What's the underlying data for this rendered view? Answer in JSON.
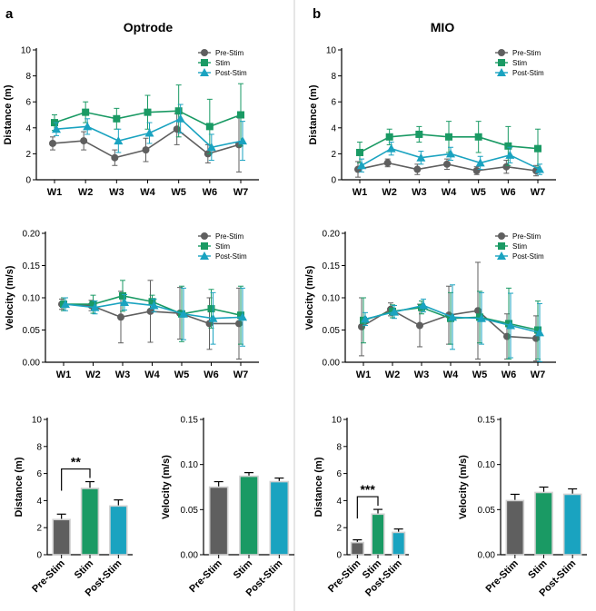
{
  "panels": [
    {
      "letter": "a",
      "title": "Optrode"
    },
    {
      "letter": "b",
      "title": "MIO"
    }
  ],
  "colors": {
    "pre": "#5f5f5f",
    "stim": "#1a9a64",
    "post": "#1aa3c0",
    "divider": "#cccccc"
  },
  "chart_data": [
    {
      "id": "opt-distance-weeks",
      "panel": "a",
      "type": "line",
      "ylabel": "Distance (m)",
      "ylim": [
        0,
        10
      ],
      "yticks": [
        0,
        2,
        4,
        6,
        8,
        10
      ],
      "yticklabels": [
        "0",
        "2",
        "4",
        "6",
        "8",
        "10"
      ],
      "categories": [
        "W1",
        "W2",
        "W3",
        "W4",
        "W5",
        "W6",
        "W7"
      ],
      "legend": "top-right",
      "series": [
        {
          "name": "Pre-Stim",
          "marker": "circle",
          "color": "#5f5f5f",
          "values": [
            2.8,
            3.0,
            1.7,
            2.3,
            3.9,
            2.0,
            2.7
          ],
          "errors": [
            0.5,
            0.7,
            0.6,
            0.9,
            1.2,
            0.7,
            2.1
          ]
        },
        {
          "name": "Stim",
          "marker": "square",
          "color": "#1a9a64",
          "values": [
            4.4,
            5.2,
            4.7,
            5.2,
            5.3,
            4.1,
            5.0
          ],
          "errors": [
            0.6,
            0.8,
            0.8,
            1.3,
            2.0,
            2.1,
            2.4
          ]
        },
        {
          "name": "Post-Stim",
          "marker": "triangle",
          "color": "#1aa3c0",
          "values": [
            3.9,
            4.1,
            3.0,
            3.6,
            4.7,
            2.5,
            3.0
          ],
          "errors": [
            0.5,
            0.6,
            0.9,
            0.8,
            1.1,
            1.0,
            1.5
          ]
        }
      ]
    },
    {
      "id": "mio-distance-weeks",
      "panel": "b",
      "type": "line",
      "ylabel": "Distance (m)",
      "ylim": [
        0,
        10
      ],
      "yticks": [
        0,
        2,
        4,
        6,
        8,
        10
      ],
      "yticklabels": [
        "0",
        "2",
        "4",
        "6",
        "8",
        "10"
      ],
      "categories": [
        "W1",
        "W2",
        "W3",
        "W4",
        "W5",
        "W6",
        "W7"
      ],
      "legend": "top-right",
      "series": [
        {
          "name": "Pre-Stim",
          "marker": "circle",
          "color": "#5f5f5f",
          "values": [
            0.8,
            1.3,
            0.8,
            1.2,
            0.7,
            1.0,
            0.7
          ],
          "errors": [
            0.6,
            0.3,
            0.4,
            0.4,
            0.3,
            0.5,
            0.4
          ]
        },
        {
          "name": "Stim",
          "marker": "square",
          "color": "#1a9a64",
          "values": [
            2.1,
            3.3,
            3.5,
            3.3,
            3.3,
            2.6,
            2.4
          ],
          "errors": [
            0.8,
            0.6,
            0.6,
            1.2,
            1.2,
            1.5,
            1.5
          ]
        },
        {
          "name": "Post-Stim",
          "marker": "triangle",
          "color": "#1aa3c0",
          "values": [
            1.1,
            2.4,
            1.7,
            2.0,
            1.3,
            1.9,
            0.8
          ],
          "errors": [
            0.5,
            0.5,
            0.5,
            0.5,
            0.5,
            0.6,
            0.4
          ]
        }
      ]
    },
    {
      "id": "opt-velocity-weeks",
      "panel": "a",
      "type": "line",
      "ylabel": "Velocity (m/s)",
      "ylim": [
        0,
        0.2
      ],
      "yticks": [
        0,
        0.05,
        0.1,
        0.15,
        0.2
      ],
      "yticklabels": [
        "0.00",
        "0.05",
        "0.10",
        "0.15",
        "0.20"
      ],
      "categories": [
        "W1",
        "W2",
        "W3",
        "W4",
        "W5",
        "W6",
        "W7"
      ],
      "legend": "top-right",
      "series": [
        {
          "name": "Pre-Stim",
          "marker": "circle",
          "color": "#5f5f5f",
          "values": [
            0.09,
            0.088,
            0.07,
            0.079,
            0.076,
            0.06,
            0.06
          ],
          "errors": [
            0.008,
            0.008,
            0.04,
            0.048,
            0.04,
            0.04,
            0.055
          ]
        },
        {
          "name": "Stim",
          "marker": "square",
          "color": "#1a9a64",
          "values": [
            0.09,
            0.09,
            0.103,
            0.094,
            0.075,
            0.083,
            0.073
          ],
          "errors": [
            0.01,
            0.014,
            0.024,
            0.01,
            0.043,
            0.03,
            0.045
          ]
        },
        {
          "name": "Post-Stim",
          "marker": "triangle",
          "color": "#1aa3c0",
          "values": [
            0.09,
            0.085,
            0.093,
            0.088,
            0.075,
            0.068,
            0.07
          ],
          "errors": [
            0.01,
            0.01,
            0.012,
            0.01,
            0.04,
            0.04,
            0.045
          ]
        }
      ]
    },
    {
      "id": "mio-velocity-weeks",
      "panel": "b",
      "type": "line",
      "ylabel": "Velocity (m/s)",
      "ylim": [
        0,
        0.2
      ],
      "yticks": [
        0,
        0.05,
        0.1,
        0.15,
        0.2
      ],
      "yticklabels": [
        "0.00",
        "0.05",
        "0.10",
        "0.15",
        "0.20"
      ],
      "categories": [
        "W1",
        "W2",
        "W3",
        "W4",
        "W5",
        "W6",
        "W7"
      ],
      "legend": "top-right",
      "series": [
        {
          "name": "Pre-Stim",
          "marker": "circle",
          "color": "#5f5f5f",
          "values": [
            0.055,
            0.082,
            0.057,
            0.073,
            0.08,
            0.04,
            0.037
          ],
          "errors": [
            0.045,
            0.01,
            0.033,
            0.045,
            0.075,
            0.035,
            0.035
          ]
        },
        {
          "name": "Stim",
          "marker": "square",
          "color": "#1a9a64",
          "values": [
            0.065,
            0.079,
            0.085,
            0.068,
            0.07,
            0.06,
            0.05
          ],
          "errors": [
            0.035,
            0.01,
            0.01,
            0.04,
            0.04,
            0.055,
            0.045
          ]
        },
        {
          "name": "Post-Stim",
          "marker": "triangle",
          "color": "#1aa3c0",
          "values": [
            0.067,
            0.078,
            0.088,
            0.07,
            0.068,
            0.057,
            0.046
          ],
          "errors": [
            0.01,
            0.01,
            0.01,
            0.05,
            0.04,
            0.05,
            0.045
          ]
        }
      ]
    },
    {
      "id": "opt-distance-bars",
      "panel": "a",
      "type": "bar",
      "ylabel": "Distance (m)",
      "ylim": [
        0,
        10
      ],
      "yticks": [
        0,
        2,
        4,
        6,
        8,
        10
      ],
      "yticklabels": [
        "0",
        "2",
        "4",
        "6",
        "8",
        "10"
      ],
      "categories": [
        "Pre-Stim",
        "Stim",
        "Post-Stim"
      ],
      "values": [
        2.6,
        4.9,
        3.6
      ],
      "errors": [
        0.4,
        0.5,
        0.45
      ],
      "significance": {
        "pair": [
          0,
          1
        ],
        "label": "**"
      }
    },
    {
      "id": "opt-velocity-bars",
      "panel": "a",
      "type": "bar",
      "ylabel": "Velocity (m/s)",
      "ylim": [
        0,
        0.15
      ],
      "yticks": [
        0,
        0.05,
        0.1,
        0.15
      ],
      "yticklabels": [
        "0.00",
        "0.05",
        "0.10",
        "0.15"
      ],
      "categories": [
        "Pre-Stim",
        "Stim",
        "Post-Stim"
      ],
      "values": [
        0.075,
        0.087,
        0.081
      ],
      "errors": [
        0.006,
        0.004,
        0.004
      ]
    },
    {
      "id": "mio-distance-bars",
      "panel": "b",
      "type": "bar",
      "ylabel": "Distance (m)",
      "ylim": [
        0,
        10
      ],
      "yticks": [
        0,
        2,
        4,
        6,
        8,
        10
      ],
      "yticklabels": [
        "0",
        "2",
        "4",
        "6",
        "8",
        "10"
      ],
      "categories": [
        "Pre-Stim",
        "Stim",
        "Post-Stim"
      ],
      "values": [
        0.9,
        3.0,
        1.65
      ],
      "errors": [
        0.2,
        0.35,
        0.25
      ],
      "significance": {
        "pair": [
          0,
          1
        ],
        "label": "***"
      }
    },
    {
      "id": "mio-velocity-bars",
      "panel": "b",
      "type": "bar",
      "ylabel": "Velocity (m/s)",
      "ylim": [
        0,
        0.15
      ],
      "yticks": [
        0,
        0.05,
        0.1,
        0.15
      ],
      "yticklabels": [
        "0.00",
        "0.05",
        "0.10",
        "0.15"
      ],
      "categories": [
        "Pre-Stim",
        "Stim",
        "Post-Stim"
      ],
      "values": [
        0.06,
        0.069,
        0.067
      ],
      "errors": [
        0.007,
        0.006,
        0.006
      ]
    }
  ]
}
